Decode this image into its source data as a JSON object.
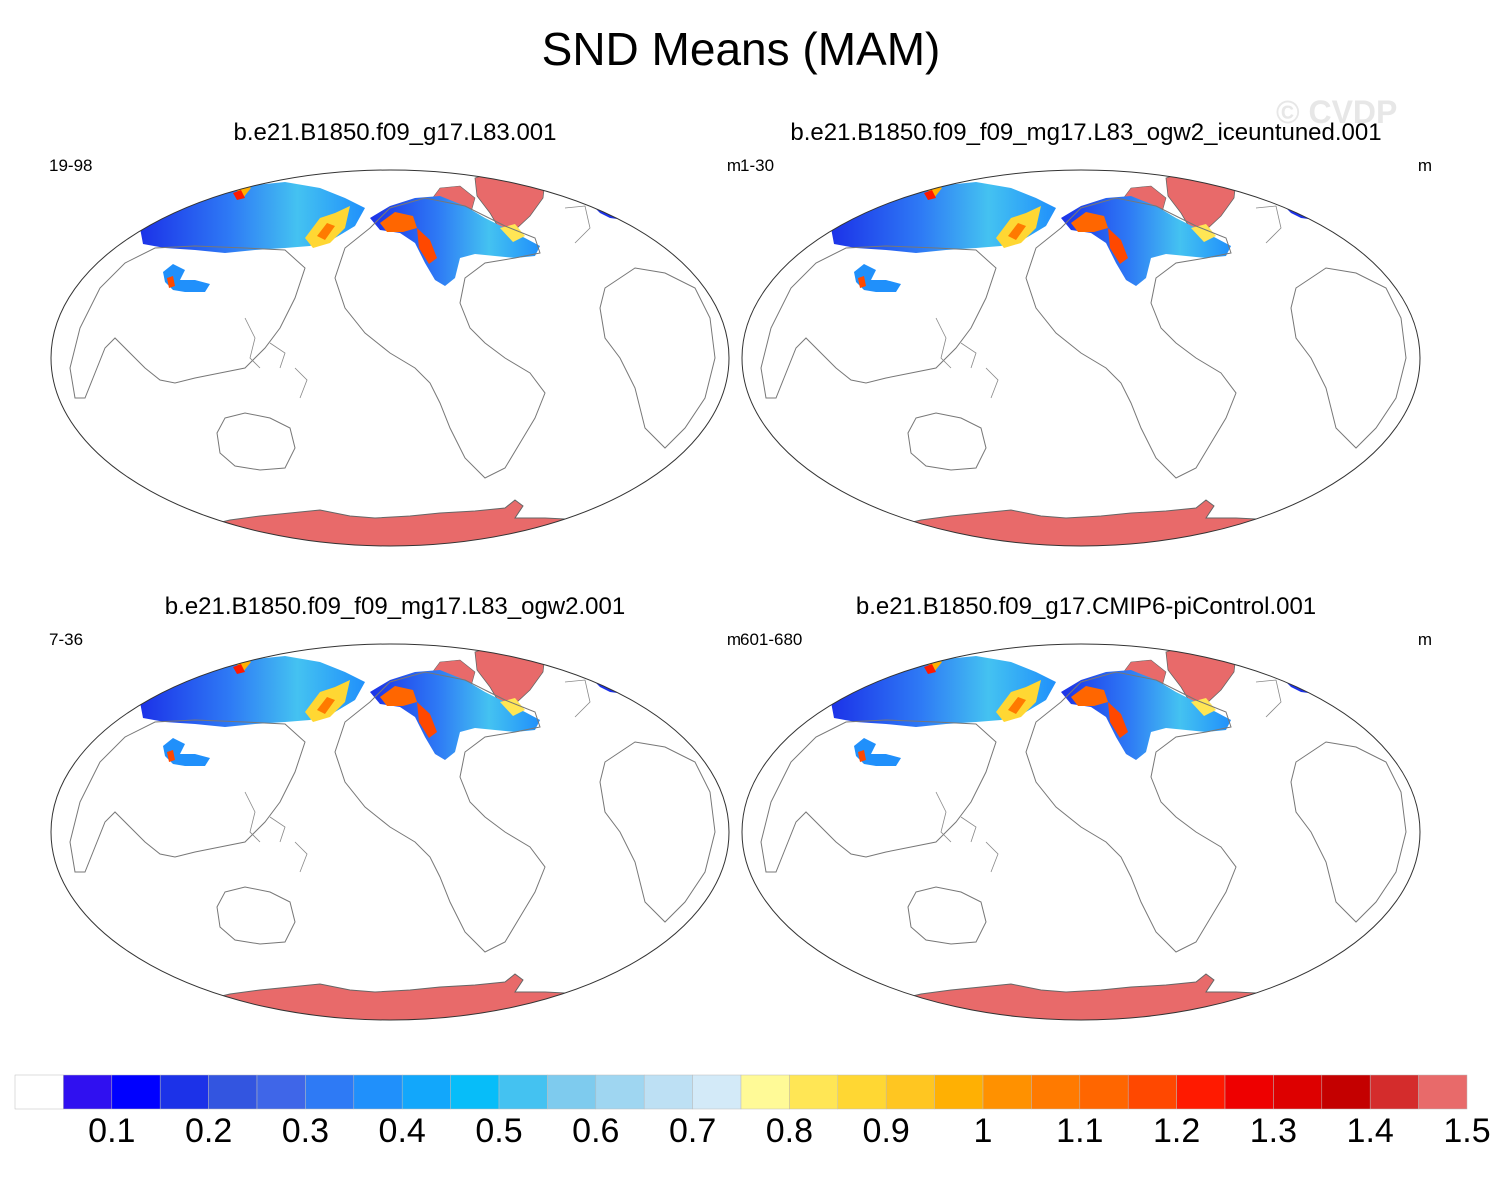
{
  "title": "SND Means (MAM)",
  "watermark": "© CVDP",
  "panels": [
    {
      "title": "b.e21.B1850.f09_g17.L83.001",
      "years": "19-98",
      "units": "m"
    },
    {
      "title": "b.e21.B1850.f09_f09_mg17.L83_ogw2_iceuntuned.001",
      "years": "1-30",
      "units": "m"
    },
    {
      "title": "b.e21.B1850.f09_f09_mg17.L83_ogw2.001",
      "years": "7-36",
      "units": "m"
    },
    {
      "title": "b.e21.B1850.f09_g17.CMIP6-piControl.001",
      "years": "601-680",
      "units": "m"
    }
  ],
  "colorbar": {
    "labels": [
      "0.1",
      "0.2",
      "0.3",
      "0.4",
      "0.5",
      "0.6",
      "0.7",
      "0.8",
      "0.9",
      "1",
      "1.1",
      "1.2",
      "1.3",
      "1.4",
      "1.5"
    ],
    "colors": [
      "#ffffff",
      "#3010f0",
      "#0000ff",
      "#1c32e8",
      "#3355e0",
      "#3f66e8",
      "#2e7af5",
      "#2090fb",
      "#12a7fb",
      "#07bdf9",
      "#44c2f1",
      "#7ecbee",
      "#9fd6f1",
      "#bde0f4",
      "#d3eaf8",
      "#fffa97",
      "#ffe655",
      "#ffd733",
      "#ffc621",
      "#ffb003",
      "#ff9100",
      "#ff7a00",
      "#ff6600",
      "#ff4800",
      "#ff1a00",
      "#ee0000",
      "#dd0000",
      "#c40000",
      "#d42c2c",
      "#e86a6a"
    ]
  }
}
